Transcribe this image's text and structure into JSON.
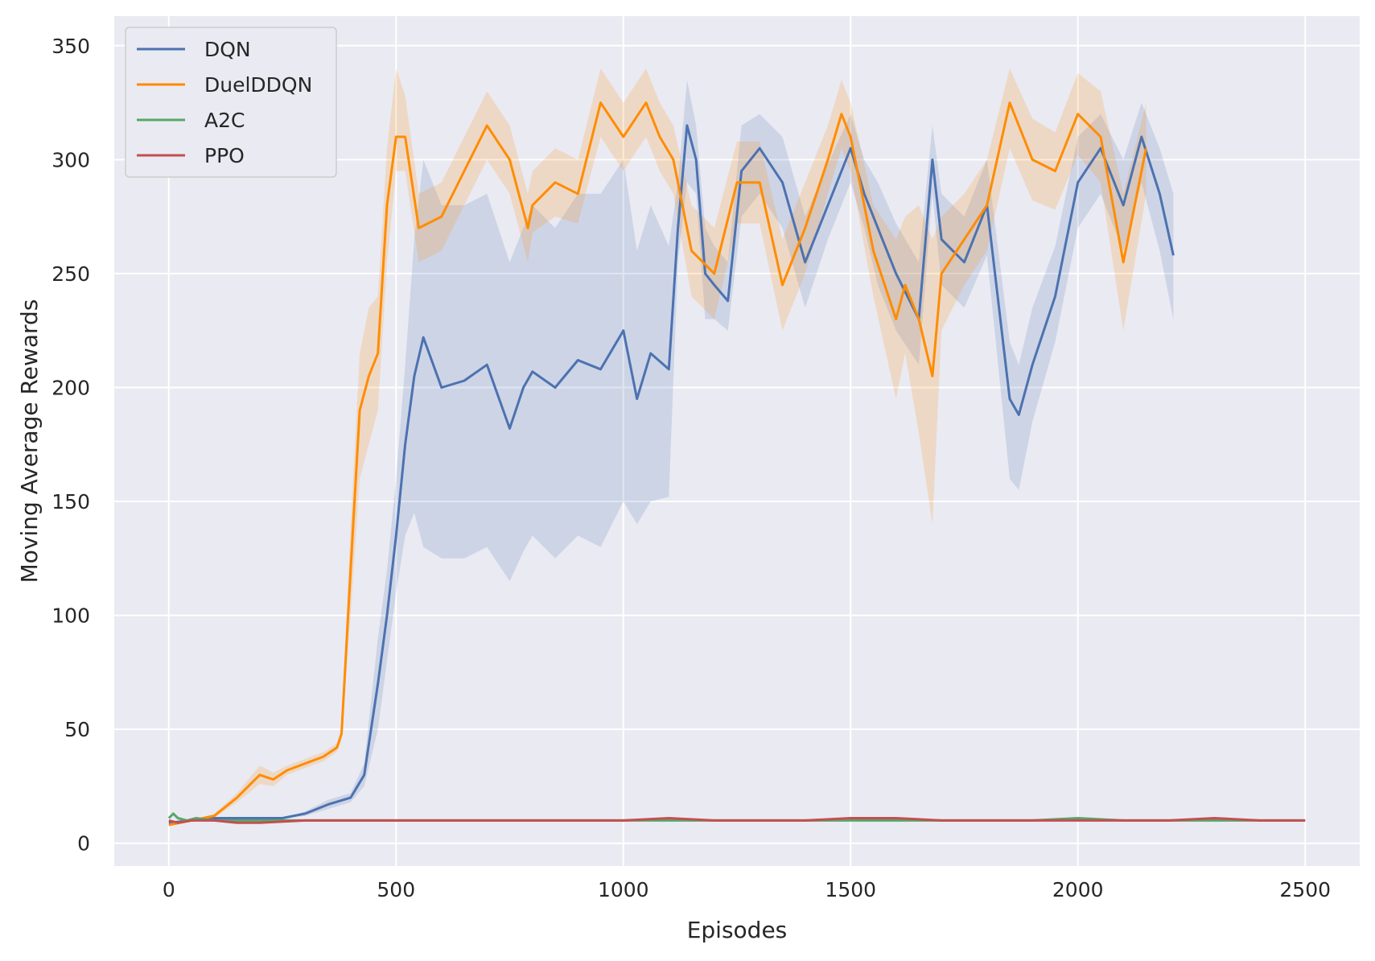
{
  "chart_data": {
    "type": "line",
    "title": "",
    "xlabel": "Episodes",
    "ylabel": "Moving Average Rewards",
    "xlim": [
      -120,
      2620
    ],
    "ylim": [
      -10,
      363
    ],
    "xticks": [
      0,
      500,
      1000,
      1500,
      2000,
      2500
    ],
    "yticks": [
      0,
      50,
      100,
      150,
      200,
      250,
      300,
      350
    ],
    "grid": true,
    "legend_position": "top-left",
    "colors": {
      "background": "#eaeaf2",
      "grid": "#ffffff",
      "DQN": "#4c72b0",
      "DuelDDQN": "#ff8c00",
      "A2C": "#55a868",
      "PPO": "#c44e52"
    },
    "series": [
      {
        "name": "DQN",
        "x": [
          0,
          50,
          100,
          150,
          200,
          250,
          300,
          350,
          400,
          430,
          460,
          480,
          500,
          520,
          540,
          560,
          600,
          650,
          700,
          750,
          780,
          800,
          850,
          900,
          950,
          1000,
          1030,
          1060,
          1100,
          1120,
          1140,
          1160,
          1180,
          1200,
          1230,
          1260,
          1300,
          1350,
          1400,
          1450,
          1500,
          1530,
          1560,
          1600,
          1650,
          1680,
          1700,
          1750,
          1800,
          1850,
          1870,
          1900,
          1950,
          2000,
          2050,
          2100,
          2140,
          2180,
          2210
        ],
        "y": [
          9,
          10,
          11,
          11,
          11,
          11,
          13,
          17,
          20,
          30,
          70,
          100,
          135,
          175,
          205,
          222,
          200,
          203,
          210,
          182,
          200,
          207,
          200,
          212,
          208,
          225,
          195,
          215,
          208,
          270,
          315,
          300,
          250,
          245,
          238,
          295,
          305,
          290,
          255,
          280,
          305,
          285,
          270,
          250,
          230,
          300,
          265,
          255,
          280,
          195,
          188,
          210,
          240,
          290,
          305,
          280,
          310,
          285,
          258
        ],
        "lower": [
          9,
          10,
          11,
          11,
          11,
          11,
          12,
          15,
          18,
          25,
          50,
          80,
          110,
          135,
          145,
          130,
          125,
          125,
          130,
          115,
          128,
          135,
          125,
          135,
          130,
          150,
          140,
          150,
          152,
          255,
          290,
          285,
          230,
          230,
          225,
          275,
          285,
          270,
          235,
          265,
          290,
          270,
          245,
          225,
          210,
          285,
          245,
          235,
          258,
          160,
          155,
          185,
          220,
          270,
          285,
          260,
          290,
          260,
          230
        ],
        "upper": [
          9,
          10,
          11,
          11,
          11,
          11,
          14,
          19,
          22,
          35,
          90,
          120,
          160,
          210,
          265,
          300,
          280,
          280,
          285,
          255,
          270,
          280,
          270,
          285,
          285,
          300,
          260,
          280,
          262,
          290,
          335,
          315,
          270,
          262,
          255,
          315,
          320,
          310,
          275,
          298,
          320,
          300,
          290,
          272,
          255,
          315,
          285,
          275,
          300,
          220,
          210,
          235,
          262,
          310,
          320,
          300,
          325,
          305,
          285
        ]
      },
      {
        "name": "DuelDDQN",
        "x": [
          0,
          50,
          100,
          150,
          200,
          230,
          260,
          300,
          340,
          370,
          380,
          400,
          420,
          440,
          460,
          480,
          500,
          520,
          550,
          600,
          650,
          700,
          750,
          790,
          800,
          850,
          900,
          950,
          1000,
          1050,
          1080,
          1110,
          1150,
          1200,
          1250,
          1300,
          1350,
          1400,
          1450,
          1480,
          1500,
          1550,
          1600,
          1620,
          1650,
          1680,
          1700,
          1750,
          1800,
          1850,
          1900,
          1950,
          2000,
          2050,
          2100,
          2150
        ],
        "y": [
          8,
          10,
          12,
          20,
          30,
          28,
          32,
          35,
          38,
          42,
          48,
          120,
          190,
          205,
          215,
          280,
          310,
          310,
          270,
          275,
          295,
          315,
          300,
          270,
          280,
          290,
          285,
          325,
          310,
          325,
          310,
          300,
          260,
          250,
          290,
          290,
          245,
          270,
          300,
          320,
          310,
          260,
          230,
          245,
          230,
          205,
          250,
          265,
          280,
          325,
          300,
          295,
          320,
          310,
          255,
          305
        ],
        "lower": [
          8,
          10,
          11,
          18,
          26,
          25,
          30,
          33,
          36,
          40,
          45,
          100,
          160,
          175,
          190,
          255,
          295,
          295,
          255,
          260,
          280,
          300,
          285,
          255,
          268,
          275,
          272,
          310,
          295,
          310,
          295,
          285,
          240,
          230,
          272,
          272,
          225,
          250,
          285,
          305,
          295,
          240,
          195,
          215,
          180,
          140,
          225,
          245,
          260,
          305,
          282,
          278,
          302,
          290,
          225,
          285
        ],
        "upper": [
          8,
          10,
          13,
          22,
          34,
          31,
          34,
          37,
          40,
          44,
          51,
          140,
          215,
          235,
          240,
          305,
          340,
          328,
          285,
          290,
          310,
          330,
          315,
          285,
          295,
          305,
          300,
          340,
          325,
          340,
          325,
          315,
          280,
          270,
          308,
          308,
          265,
          290,
          315,
          335,
          325,
          280,
          265,
          275,
          280,
          265,
          275,
          285,
          300,
          340,
          318,
          312,
          338,
          330,
          285,
          325
        ]
      },
      {
        "name": "A2C",
        "x": [
          0,
          10,
          20,
          40,
          60,
          100,
          200,
          300,
          400,
          500,
          600,
          700,
          800,
          900,
          1000,
          1100,
          1200,
          1300,
          1400,
          1500,
          1600,
          1700,
          1800,
          1900,
          2000,
          2100,
          2200,
          2300,
          2400,
          2500
        ],
        "y": [
          11,
          13,
          11,
          10,
          11,
          10,
          10,
          10,
          10,
          10,
          10,
          10,
          10,
          10,
          10,
          10,
          10,
          10,
          10,
          10,
          10,
          10,
          10,
          10,
          11,
          10,
          10,
          10,
          10,
          10
        ]
      },
      {
        "name": "PPO",
        "x": [
          0,
          20,
          50,
          100,
          150,
          200,
          300,
          400,
          500,
          600,
          700,
          800,
          900,
          1000,
          1100,
          1200,
          1300,
          1400,
          1500,
          1600,
          1700,
          1800,
          1900,
          2000,
          2100,
          2200,
          2300,
          2400,
          2500
        ],
        "y": [
          10,
          9,
          10,
          10,
          9,
          9,
          10,
          10,
          10,
          10,
          10,
          10,
          10,
          10,
          11,
          10,
          10,
          10,
          11,
          11,
          10,
          10,
          10,
          10,
          10,
          10,
          11,
          10,
          10
        ]
      }
    ]
  }
}
